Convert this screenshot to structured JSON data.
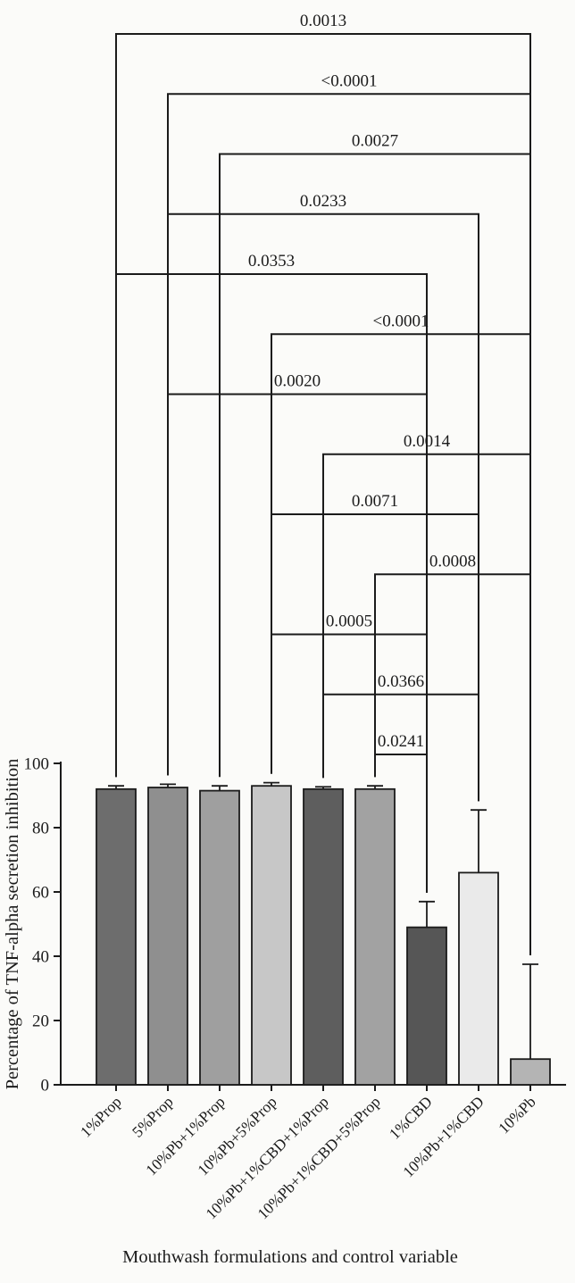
{
  "chart_data": {
    "type": "bar",
    "title": "",
    "xlabel": "Mouthwash formulations and control variable",
    "ylabel": "Percentage of TNF-alpha secretion inhibition",
    "ylim": [
      0,
      100
    ],
    "yticks": [
      0,
      20,
      40,
      60,
      80,
      100
    ],
    "grid": "off",
    "legend": "none",
    "categories": [
      "1%Prop",
      "5%Prop",
      "10%Pb+1%Prop",
      "10%Pb+5%Prop",
      "10%Pb+1%CBD+1%Prop",
      "10%Pb+1%CBD+5%Prop",
      "1%CBD",
      "10%Pb+1%CBD",
      "10%Pb"
    ],
    "values": [
      92,
      92.5,
      91.5,
      93,
      92,
      92,
      49,
      66,
      8
    ],
    "error_upper": [
      1,
      1,
      1.5,
      1,
      0.7,
      1,
      8,
      19.5,
      29.5
    ],
    "bar_colors": [
      "#6d6d6d",
      "#8f8f8f",
      "#9f9f9f",
      "#c7c7c7",
      "#5e5e5e",
      "#a2a2a2",
      "#565656",
      "#eaeaea",
      "#b4b4b4"
    ],
    "ink_color": "#1b1b1b",
    "background_color": "#fbfbf9",
    "significance": [
      {
        "from": 0,
        "to": 8,
        "p": "0.0013"
      },
      {
        "from": 1,
        "to": 8,
        "p": "<0.0001"
      },
      {
        "from": 2,
        "to": 8,
        "p": "0.0027"
      },
      {
        "from": 1,
        "to": 7,
        "p": "0.0233"
      },
      {
        "from": 0,
        "to": 6,
        "p": "0.0353"
      },
      {
        "from": 3,
        "to": 8,
        "p": "<0.0001"
      },
      {
        "from": 1,
        "to": 6,
        "p": "0.0020"
      },
      {
        "from": 4,
        "to": 8,
        "p": "0.0014"
      },
      {
        "from": 3,
        "to": 7,
        "p": "0.0071"
      },
      {
        "from": 5,
        "to": 8,
        "p": "0.0008"
      },
      {
        "from": 3,
        "to": 6,
        "p": "0.0005"
      },
      {
        "from": 4,
        "to": 7,
        "p": "0.0366"
      },
      {
        "from": 5,
        "to": 6,
        "p": "0.0241"
      }
    ]
  }
}
